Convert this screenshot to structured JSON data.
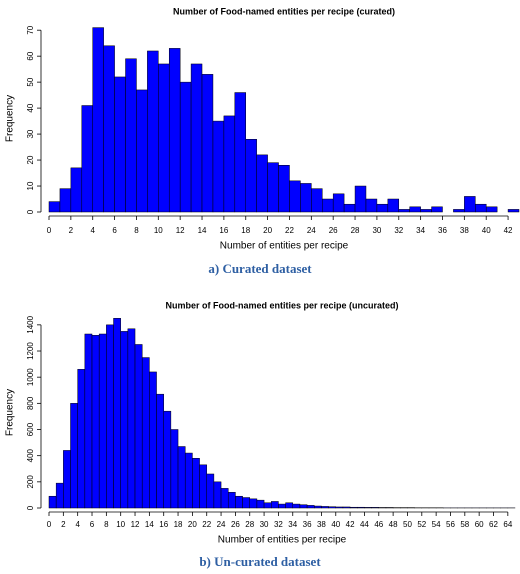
{
  "chart_data": [
    {
      "type": "histogram",
      "title": "Number of Food-named entities per recipe (curated)",
      "xlabel": "Number of entities per recipe",
      "ylabel": "Frequency",
      "caption": "a) Curated dataset",
      "color": "#0000ff",
      "bins": [
        0,
        1,
        2,
        3,
        4,
        5,
        6,
        7,
        8,
        9,
        10,
        11,
        12,
        13,
        14,
        15,
        16,
        17,
        18,
        19,
        20,
        21,
        22,
        23,
        24,
        25,
        26,
        27,
        28,
        29,
        30,
        31,
        32,
        33,
        34,
        35,
        36,
        37,
        38,
        39,
        40,
        41,
        42,
        43
      ],
      "values": [
        4,
        9,
        17,
        41,
        71,
        64,
        52,
        59,
        47,
        62,
        57,
        63,
        50,
        57,
        53,
        35,
        37,
        46,
        28,
        22,
        19,
        18,
        12,
        11,
        9,
        5,
        7,
        3,
        10,
        5,
        3,
        5,
        1,
        2,
        1,
        2,
        0,
        1,
        6,
        3,
        2,
        0,
        1
      ],
      "xlim": [
        0,
        43
      ],
      "xticks": [
        0,
        2,
        4,
        6,
        8,
        10,
        12,
        14,
        16,
        18,
        20,
        22,
        24,
        26,
        28,
        30,
        32,
        34,
        36,
        38,
        40,
        42
      ],
      "ylim": [
        0,
        72
      ],
      "yticks": [
        0,
        10,
        20,
        30,
        40,
        50,
        60,
        70
      ]
    },
    {
      "type": "histogram",
      "title": "Number of Food-named entities per recipe (uncurated)",
      "xlabel": "Number of entities per recipe",
      "ylabel": "Frequency",
      "caption": "b) Un-curated dataset",
      "color": "#0000ff",
      "bins": [
        0,
        1,
        2,
        3,
        4,
        5,
        6,
        7,
        8,
        9,
        10,
        11,
        12,
        13,
        14,
        15,
        16,
        17,
        18,
        19,
        20,
        21,
        22,
        23,
        24,
        25,
        26,
        27,
        28,
        29,
        30,
        31,
        32,
        33,
        34,
        35,
        36,
        37,
        38,
        39,
        40,
        41,
        42,
        43,
        44,
        45,
        46,
        47,
        48,
        49,
        50,
        51,
        52,
        53,
        54,
        55,
        56,
        57,
        58,
        59,
        60,
        61,
        62,
        63,
        64,
        65
      ],
      "values": [
        90,
        190,
        440,
        800,
        1060,
        1330,
        1320,
        1330,
        1400,
        1450,
        1350,
        1370,
        1250,
        1150,
        1040,
        870,
        740,
        600,
        470,
        420,
        380,
        330,
        260,
        200,
        150,
        120,
        90,
        80,
        70,
        60,
        40,
        50,
        30,
        40,
        30,
        25,
        20,
        15,
        12,
        10,
        8,
        8,
        6,
        6,
        5,
        5,
        4,
        4,
        3,
        3,
        3,
        2,
        2,
        2,
        2,
        1,
        1,
        1,
        1,
        1,
        1,
        1,
        1,
        1,
        1
      ],
      "xlim": [
        0,
        65
      ],
      "xticks": [
        0,
        2,
        4,
        6,
        8,
        10,
        12,
        14,
        16,
        18,
        20,
        22,
        24,
        26,
        28,
        30,
        32,
        34,
        36,
        38,
        40,
        42,
        44,
        46,
        48,
        50,
        52,
        54,
        56,
        58,
        60,
        62,
        64
      ],
      "ylim": [
        0,
        1460
      ],
      "yticks": [
        0,
        200,
        400,
        600,
        800,
        1000,
        1200,
        1400
      ]
    }
  ]
}
